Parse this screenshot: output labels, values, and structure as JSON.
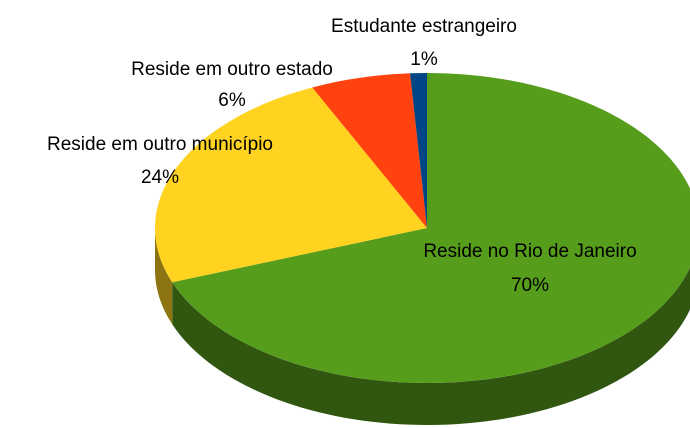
{
  "chart_data": {
    "type": "pie",
    "categories": [
      "Reside no Rio de Janeiro",
      "Reside em outro município",
      "Reside em outro estado",
      "Estudante estrangeiro"
    ],
    "values": [
      70,
      24,
      6,
      1
    ],
    "value_labels": [
      "70%",
      "24%",
      "6%",
      "1%"
    ],
    "colors": [
      "#579d1c",
      "#ffd320",
      "#ff420e",
      "#004586"
    ]
  }
}
